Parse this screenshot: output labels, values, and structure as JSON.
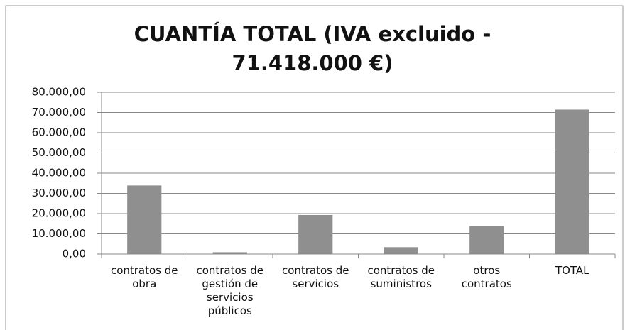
{
  "chart_data": {
    "type": "bar",
    "title": "CUANTÍA TOTAL (IVA excluido - 71.418.000 €)",
    "categories": [
      "contratos de obra",
      "contratos de gestión de servicios públicos",
      "contratos de servicios",
      "contratos de suministros",
      "otros contratos",
      "TOTAL"
    ],
    "values": [
      33900,
      900,
      19300,
      3400,
      13800,
      71418
    ],
    "color": "#8f8f8f",
    "ylim": [
      0,
      80000
    ],
    "yticks": [
      {
        "value": 0,
        "label": "0,00"
      },
      {
        "value": 10000,
        "label": "10.000,00"
      },
      {
        "value": 20000,
        "label": "20.000,00"
      },
      {
        "value": 30000,
        "label": "30.000,00"
      },
      {
        "value": 40000,
        "label": "40.000,00"
      },
      {
        "value": 50000,
        "label": "50.000,00"
      },
      {
        "value": 60000,
        "label": "60.000,00"
      },
      {
        "value": 70000,
        "label": "70.000,00"
      },
      {
        "value": 80000,
        "label": "80.000,00"
      }
    ],
    "grid": true
  }
}
